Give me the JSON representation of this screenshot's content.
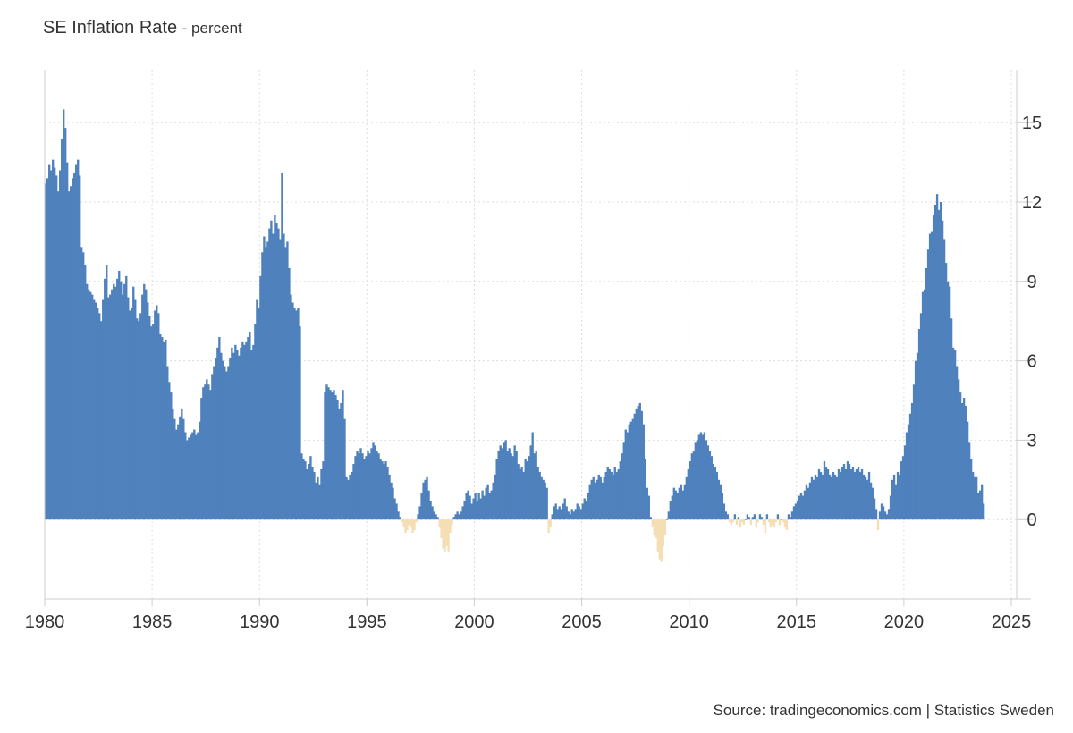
{
  "header": {
    "title": "SE Inflation Rate",
    "subtitle": "- percent"
  },
  "footer": {
    "source": "Source: tradingeconomics.com | Statistics Sweden"
  },
  "colors": {
    "positive": "#4f81bd",
    "negative": "#f5deb3",
    "grid": "#dddddd",
    "axis": "#cccccc",
    "text": "#333333"
  },
  "chart_data": {
    "type": "bar",
    "title": "SE Inflation Rate",
    "subtitle": "- percent",
    "xlabel": "",
    "ylabel": "",
    "x_ticks": [
      "1980",
      "1985",
      "1990",
      "1995",
      "2000",
      "2005",
      "2010",
      "2015",
      "2020",
      "2025"
    ],
    "y_ticks": [
      0,
      3,
      6,
      9,
      12,
      15
    ],
    "xlim": [
      1980,
      2025.25
    ],
    "ylim": [
      -3,
      17
    ],
    "grid": true,
    "legend": "none",
    "y_axis_position": "right",
    "series": [
      {
        "frequency": "monthly",
        "start": "1980-01",
        "values": [
          12.7,
          12.9,
          13.4,
          13.2,
          13.6,
          13.3,
          13.0,
          12.4,
          13.2,
          14.4,
          15.5,
          14.8,
          13.5,
          12.4,
          12.6,
          12.9,
          13.1,
          13.4,
          13.6,
          13.0,
          10.3,
          10.1,
          9.6,
          8.9,
          8.7,
          8.6,
          8.5,
          8.3,
          8.2,
          8.0,
          7.8,
          7.5,
          8.3,
          9.1,
          9.6,
          8.4,
          8.5,
          8.7,
          8.9,
          8.8,
          9.1,
          9.4,
          9.0,
          8.5,
          8.9,
          9.2,
          8.4,
          7.9,
          8.0,
          8.8,
          8.3,
          7.6,
          7.5,
          7.8,
          8.5,
          8.9,
          8.7,
          8.2,
          7.7,
          7.3,
          7.4,
          7.9,
          8.1,
          7.8,
          7.0,
          6.9,
          6.7,
          6.8,
          5.8,
          5.2,
          4.8,
          4.2,
          3.8,
          3.4,
          3.6,
          3.9,
          4.2,
          3.8,
          3.3,
          3.0,
          3.1,
          3.2,
          3.3,
          3.4,
          3.2,
          3.3,
          3.7,
          4.6,
          5.0,
          5.1,
          5.3,
          5.1,
          4.9,
          5.5,
          5.8,
          6.1,
          6.5,
          6.9,
          6.3,
          6.0,
          5.8,
          5.6,
          5.8,
          6.1,
          6.5,
          6.3,
          6.6,
          6.4,
          6.2,
          6.5,
          6.7,
          6.6,
          6.7,
          6.9,
          7.1,
          6.4,
          6.6,
          7.4,
          8.3,
          8.0,
          9.2,
          10.1,
          10.7,
          10.3,
          10.5,
          11.0,
          11.3,
          10.8,
          11.5,
          11.2,
          11.0,
          10.6,
          13.1,
          10.8,
          10.3,
          10.5,
          9.5,
          8.5,
          8.2,
          8.0,
          7.9,
          8.0,
          7.3,
          2.5,
          2.3,
          2.2,
          1.9,
          2.1,
          2.4,
          2.0,
          1.8,
          1.4,
          1.6,
          1.3,
          1.9,
          2.2,
          4.8,
          5.1,
          5.0,
          4.9,
          4.8,
          4.9,
          4.7,
          4.5,
          4.2,
          4.4,
          4.9,
          3.8,
          1.6,
          1.5,
          1.7,
          1.8,
          2.1,
          2.4,
          2.6,
          2.5,
          2.7,
          2.5,
          2.3,
          2.4,
          2.6,
          2.5,
          2.7,
          2.9,
          2.8,
          2.6,
          2.5,
          2.3,
          2.2,
          2.1,
          2.2,
          2.0,
          1.7,
          1.4,
          1.2,
          0.8,
          0.6,
          0.3,
          0.1,
          -0.1,
          -0.3,
          -0.5,
          -0.4,
          -0.2,
          -0.3,
          -0.5,
          -0.4,
          -0.1,
          0.2,
          0.5,
          1.0,
          1.4,
          1.5,
          1.6,
          1.1,
          0.7,
          0.5,
          0.3,
          0.2,
          0.1,
          -0.3,
          -0.7,
          -1.1,
          -1.2,
          -1.0,
          -1.2,
          -0.5,
          -0.2,
          0.1,
          0.2,
          0.3,
          0.2,
          0.3,
          0.5,
          0.7,
          1.0,
          1.1,
          0.9,
          0.6,
          0.8,
          1.0,
          0.7,
          1.0,
          0.8,
          1.1,
          0.9,
          1.2,
          1.3,
          1.0,
          1.1,
          1.4,
          1.7,
          2.3,
          2.6,
          2.8,
          2.7,
          2.9,
          3.0,
          2.6,
          2.7,
          2.5,
          2.4,
          2.8,
          2.6,
          2.1,
          1.9,
          2.0,
          1.8,
          2.3,
          2.2,
          2.4,
          2.8,
          3.3,
          2.5,
          2.6,
          2.0,
          1.8,
          1.6,
          1.5,
          1.4,
          1.2,
          -0.5,
          -0.3,
          0.2,
          0.5,
          0.6,
          0.4,
          0.5,
          0.4,
          0.6,
          0.8,
          0.5,
          0.3,
          0.2,
          0.4,
          0.3,
          0.4,
          0.6,
          0.5,
          0.4,
          0.6,
          0.8,
          0.7,
          1.0,
          1.3,
          1.5,
          1.6,
          1.4,
          1.5,
          1.7,
          1.6,
          1.4,
          1.6,
          1.8,
          2.0,
          1.9,
          1.8,
          1.7,
          2.0,
          1.8,
          1.9,
          2.2,
          2.5,
          2.9,
          3.4,
          3.3,
          3.6,
          3.7,
          3.8,
          4.0,
          4.2,
          4.3,
          4.4,
          4.1,
          3.6,
          2.3,
          1.2,
          0.9,
          0.1,
          -0.3,
          -0.6,
          -0.7,
          -1.2,
          -1.5,
          -1.6,
          -1.0,
          -0.6,
          0.0,
          0.3,
          0.7,
          0.9,
          1.2,
          1.1,
          1.0,
          1.2,
          1.3,
          1.1,
          1.3,
          1.6,
          1.9,
          2.2,
          2.5,
          2.6,
          2.9,
          3.0,
          3.2,
          3.3,
          3.2,
          3.3,
          3.0,
          2.8,
          2.6,
          2.4,
          2.1,
          2.0,
          1.8,
          1.5,
          1.3,
          1.0,
          0.6,
          0.3,
          0.2,
          -0.1,
          -0.2,
          -0.1,
          0.2,
          -0.2,
          0.1,
          -0.3,
          -0.1,
          -0.2,
          0.0,
          0.2,
          0.1,
          -0.2,
          0.1,
          0.2,
          -0.3,
          -0.1,
          0.2,
          0.1,
          -0.2,
          -0.5,
          0.2,
          -0.1,
          -0.3,
          -0.2,
          -0.3,
          -0.1,
          0.2,
          -0.2,
          0.0,
          -0.1,
          -0.3,
          -0.4,
          0.2,
          0.1,
          0.3,
          0.5,
          0.6,
          0.7,
          0.9,
          1.0,
          0.9,
          1.1,
          1.3,
          1.2,
          1.4,
          1.6,
          1.5,
          1.7,
          1.6,
          1.9,
          1.8,
          1.7,
          2.2,
          2.0,
          1.9,
          1.7,
          1.6,
          1.8,
          1.7,
          1.6,
          1.9,
          1.8,
          2.0,
          2.1,
          1.9,
          2.2,
          2.1,
          1.9,
          2.0,
          1.8,
          1.9,
          2.0,
          1.8,
          1.9,
          1.7,
          1.6,
          1.5,
          1.8,
          1.4,
          1.2,
          0.8,
          0.4,
          -0.4,
          0.3,
          0.6,
          0.5,
          0.3,
          0.2,
          0.4,
          0.9,
          1.5,
          1.7,
          1.3,
          1.8,
          1.7,
          2.2,
          2.4,
          2.8,
          3.3,
          3.6,
          4.0,
          4.4,
          5.1,
          6.0,
          6.3,
          7.2,
          7.8,
          8.6,
          8.7,
          9.5,
          10.2,
          10.8,
          10.9,
          11.5,
          11.9,
          12.3,
          11.7,
          12.0,
          11.3,
          10.6,
          9.7,
          9.0,
          8.8,
          7.6,
          6.5,
          6.4,
          5.8,
          5.3,
          4.8,
          4.4,
          4.6,
          4.3,
          3.7,
          2.9,
          2.3,
          1.8,
          1.6,
          1.6,
          1.0,
          1.1,
          1.3,
          0.6
        ]
      }
    ]
  }
}
